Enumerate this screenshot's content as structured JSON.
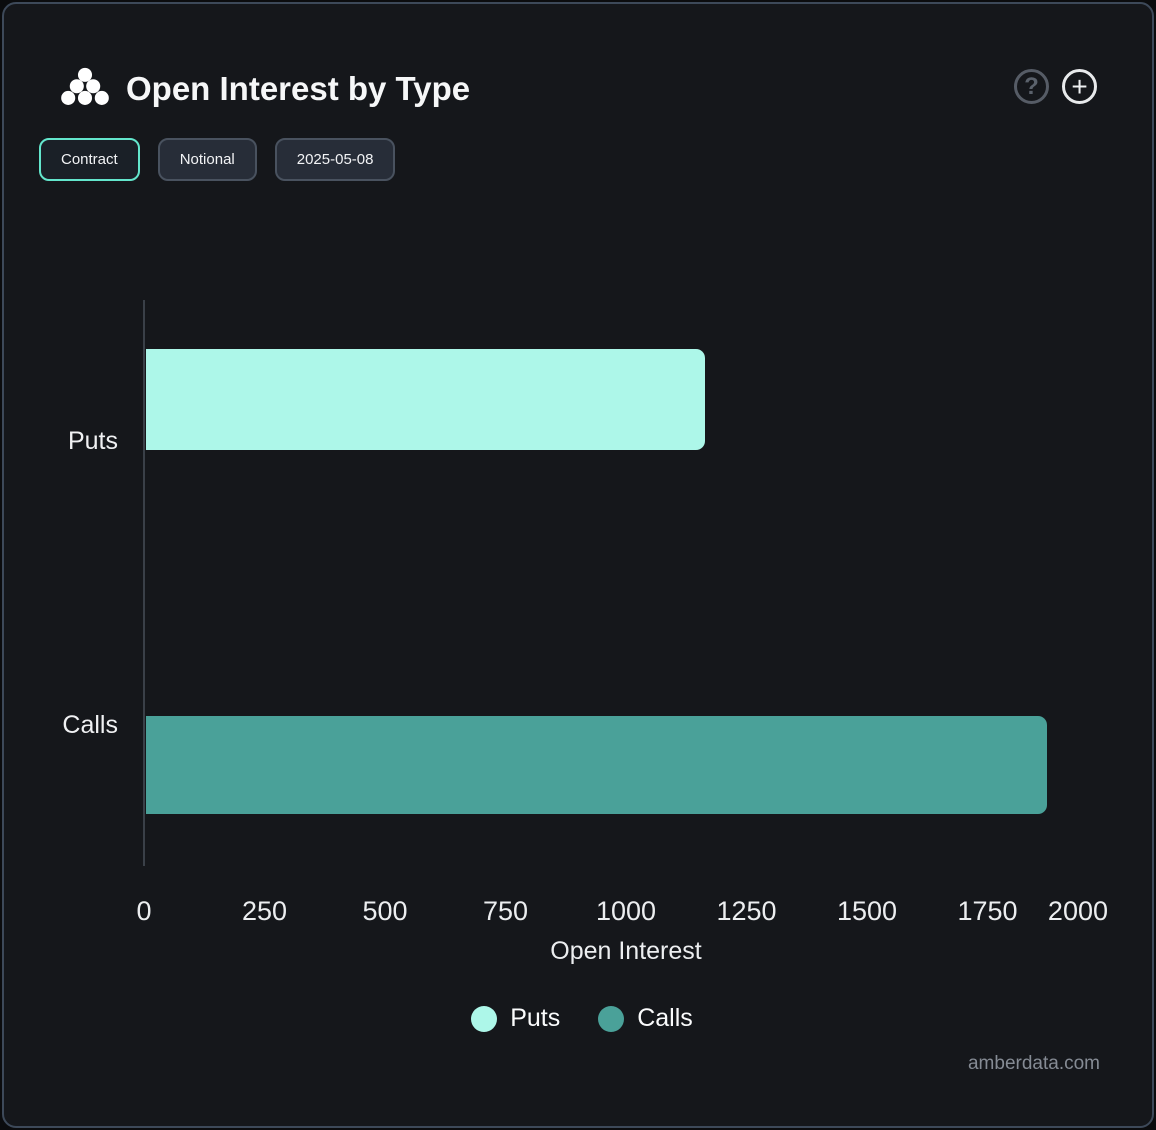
{
  "header": {
    "title": "Open Interest by Type",
    "logo": "amberdata-dots-logo",
    "help_glyph": "?",
    "add_glyph": "+"
  },
  "toolbar": {
    "buttons": [
      {
        "label": "Contract",
        "active": true
      },
      {
        "label": "Notional",
        "active": false
      },
      {
        "label": "2025-05-08",
        "active": false
      }
    ]
  },
  "chart_data": {
    "type": "bar",
    "orientation": "horizontal",
    "categories": [
      "Puts",
      "Calls"
    ],
    "values": [
      1160,
      1870
    ],
    "colors": [
      "#adf7e9",
      "#4aa199"
    ],
    "title": "Open Interest by Type",
    "xlabel": "Open Interest",
    "ylabel": "",
    "xlim": [
      0,
      2000
    ],
    "xticks": [
      0,
      250,
      500,
      750,
      1000,
      1250,
      1500,
      1750,
      2000
    ],
    "grid": false,
    "legend_position": "bottom",
    "legend": [
      {
        "label": "Puts",
        "color": "#adf7e9"
      },
      {
        "label": "Calls",
        "color": "#4aa199"
      }
    ]
  },
  "footer": {
    "watermark": "amberdata.com"
  },
  "colors": {
    "background": "#15171b",
    "border": "#3d4959",
    "accent": "#63e6cc",
    "puts": "#adf7e9",
    "calls": "#4aa199",
    "text": "#f0f1f3"
  }
}
